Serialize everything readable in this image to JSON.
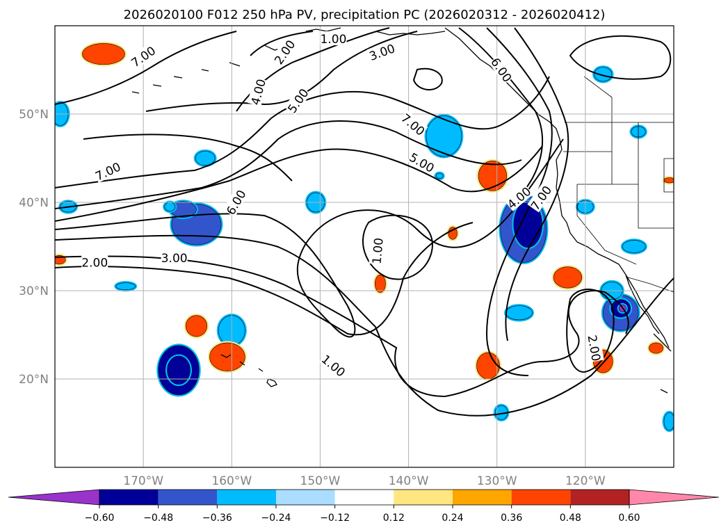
{
  "chart_data": {
    "type": "map-contour",
    "title": "2026020100 F012 250 hPa PV, precipitation PC (2026020312 - 2026020412)",
    "map_extent": {
      "lon_min": -180,
      "lon_max": -110,
      "lat_min": 10,
      "lat_max": 60
    },
    "lon_ticks": [
      {
        "lon": -170,
        "label": "170°W"
      },
      {
        "lon": -160,
        "label": "160°W"
      },
      {
        "lon": -150,
        "label": "150°W"
      },
      {
        "lon": -140,
        "label": "140°W"
      },
      {
        "lon": -130,
        "label": "130°W"
      },
      {
        "lon": -120,
        "label": "120°W"
      }
    ],
    "lat_ticks": [
      {
        "lat": 20,
        "label": "20°N"
      },
      {
        "lat": 30,
        "label": "30°N"
      },
      {
        "lat": 40,
        "label": "40°N"
      },
      {
        "lat": 50,
        "label": "50°N"
      }
    ],
    "pv_contour_labels": [
      {
        "text": "7.00",
        "lon": -170.0,
        "lat": 56.5,
        "rot": -35
      },
      {
        "text": "2.00",
        "lon": -154.0,
        "lat": 57.0,
        "rot": -55
      },
      {
        "text": "1.00",
        "lon": -148.5,
        "lat": 58.5,
        "rot": 0
      },
      {
        "text": "3.00",
        "lon": -143.0,
        "lat": 57.0,
        "rot": -20
      },
      {
        "text": "6.00",
        "lon": -129.5,
        "lat": 55.0,
        "rot": 55
      },
      {
        "text": "4.00",
        "lon": -157.0,
        "lat": 52.5,
        "rot": -75
      },
      {
        "text": "5.00",
        "lon": -152.5,
        "lat": 51.5,
        "rot": -55
      },
      {
        "text": "7.00",
        "lon": -174.0,
        "lat": 43.5,
        "rot": -25
      },
      {
        "text": "7.00",
        "lon": -139.5,
        "lat": 48.8,
        "rot": 40
      },
      {
        "text": "5.00",
        "lon": -138.5,
        "lat": 44.5,
        "rot": 30
      },
      {
        "text": "6.00",
        "lon": -159.5,
        "lat": 40.0,
        "rot": -60
      },
      {
        "text": "4.00",
        "lon": -127.5,
        "lat": 40.5,
        "rot": -40
      },
      {
        "text": "7.00",
        "lon": -125.0,
        "lat": 40.5,
        "rot": -55
      },
      {
        "text": "1.00",
        "lon": -143.5,
        "lat": 34.5,
        "rot": -85
      },
      {
        "text": "2.00",
        "lon": -175.5,
        "lat": 33.2,
        "rot": 0
      },
      {
        "text": "3.00",
        "lon": -166.5,
        "lat": 33.7,
        "rot": 0
      },
      {
        "text": "1.00",
        "lon": -148.5,
        "lat": 21.5,
        "rot": 40
      },
      {
        "text": "2.00",
        "lon": -119.0,
        "lat": 23.5,
        "rot": 80
      }
    ],
    "precip_pc_blobs": [
      {
        "lon": -174.5,
        "lat": 56.8,
        "rlon": 2.4,
        "rlat": 1.2,
        "value": 0.4
      },
      {
        "lon": -179.4,
        "lat": 50.0,
        "rlon": 0.9,
        "rlat": 1.3,
        "value": -0.35
      },
      {
        "lon": -178.5,
        "lat": 39.5,
        "rlon": 0.9,
        "rlat": 0.6,
        "value": -0.3
      },
      {
        "lon": -179.5,
        "lat": 33.5,
        "rlon": 0.7,
        "rlat": 0.5,
        "value": 0.38
      },
      {
        "lon": -164.0,
        "lat": 37.5,
        "rlon": 2.8,
        "rlat": 2.3,
        "value": -0.38
      },
      {
        "lon": -165.5,
        "lat": 39.2,
        "rlon": 1.5,
        "rlat": 0.9,
        "value": -0.4
      },
      {
        "lon": -160.0,
        "lat": 25.5,
        "rlon": 1.5,
        "rlat": 1.7,
        "value": -0.36
      },
      {
        "lon": -163.0,
        "lat": 45.0,
        "rlon": 1.1,
        "rlat": 0.8,
        "value": -0.32
      },
      {
        "lon": -167.0,
        "lat": 39.5,
        "rlon": 0.6,
        "rlat": 0.5,
        "value": -0.3
      },
      {
        "lon": -172.0,
        "lat": 30.5,
        "rlon": 1.1,
        "rlat": 0.4,
        "value": -0.3
      },
      {
        "lon": -166.0,
        "lat": 21.0,
        "rlon": 2.3,
        "rlat": 2.8,
        "value": -0.5
      },
      {
        "lon": -166.0,
        "lat": 21.0,
        "rlon": 1.3,
        "rlat": 1.6,
        "value": -0.55
      },
      {
        "lon": -164.0,
        "lat": 26.0,
        "rlon": 1.2,
        "rlat": 1.2,
        "value": 0.4
      },
      {
        "lon": -160.5,
        "lat": 22.5,
        "rlon": 2.0,
        "rlat": 1.6,
        "value": 0.4
      },
      {
        "lon": -150.5,
        "lat": 40.0,
        "rlon": 1.0,
        "rlat": 1.1,
        "value": -0.33
      },
      {
        "lon": -136.0,
        "lat": 47.5,
        "rlon": 2.0,
        "rlat": 2.3,
        "value": -0.36
      },
      {
        "lon": -136.5,
        "lat": 43.0,
        "rlon": 0.4,
        "rlat": 0.3,
        "value": -0.3
      },
      {
        "lon": -130.5,
        "lat": 43.0,
        "rlon": 1.6,
        "rlat": 1.7,
        "value": 0.4
      },
      {
        "lon": -135.0,
        "lat": 36.5,
        "rlon": 0.5,
        "rlat": 0.7,
        "value": 0.38
      },
      {
        "lon": -143.2,
        "lat": 30.8,
        "rlon": 0.6,
        "rlat": 1.0,
        "value": 0.38
      },
      {
        "lon": -127.0,
        "lat": 37.0,
        "rlon": 2.6,
        "rlat": 3.8,
        "value": -0.45
      },
      {
        "lon": -126.5,
        "lat": 37.5,
        "rlon": 1.6,
        "rlat": 2.6,
        "value": -0.55
      },
      {
        "lon": -122.0,
        "lat": 31.5,
        "rlon": 1.6,
        "rlat": 1.2,
        "value": 0.4
      },
      {
        "lon": -127.5,
        "lat": 27.5,
        "rlon": 1.5,
        "rlat": 0.8,
        "value": -0.36
      },
      {
        "lon": -131.0,
        "lat": 21.5,
        "rlon": 1.3,
        "rlat": 1.5,
        "value": 0.4
      },
      {
        "lon": -118.0,
        "lat": 22.0,
        "rlon": 1.1,
        "rlat": 1.3,
        "value": 0.4
      },
      {
        "lon": -116.0,
        "lat": 27.5,
        "rlon": 2.0,
        "rlat": 2.0,
        "value": -0.38
      },
      {
        "lon": -116.0,
        "lat": 28.0,
        "rlon": 1.1,
        "rlat": 1.0,
        "value": -0.55
      },
      {
        "lon": -115.8,
        "lat": 28.0,
        "rlon": 0.4,
        "rlat": 0.4,
        "value": -0.65
      },
      {
        "lon": -117.0,
        "lat": 30.0,
        "rlon": 1.2,
        "rlat": 1.0,
        "value": -0.36
      },
      {
        "lon": -114.5,
        "lat": 35.0,
        "rlon": 1.3,
        "rlat": 0.7,
        "value": -0.33
      },
      {
        "lon": -118.0,
        "lat": 54.5,
        "rlon": 1.0,
        "rlat": 0.8,
        "value": -0.36
      },
      {
        "lon": -114.0,
        "lat": 48.0,
        "rlon": 0.8,
        "rlat": 0.6,
        "value": -0.3
      },
      {
        "lon": -120.0,
        "lat": 39.5,
        "rlon": 0.9,
        "rlat": 0.7,
        "value": -0.3
      },
      {
        "lon": -129.5,
        "lat": 16.2,
        "rlon": 0.7,
        "rlat": 0.8,
        "value": -0.33
      },
      {
        "lon": -110.5,
        "lat": 15.2,
        "rlon": 0.6,
        "rlat": 1.0,
        "value": -0.33
      },
      {
        "lon": -112.0,
        "lat": 23.5,
        "rlon": 0.8,
        "rlat": 0.6,
        "value": 0.4
      },
      {
        "lon": -110.5,
        "lat": 42.5,
        "rlon": 0.6,
        "rlat": 0.3,
        "value": 0.38
      }
    ],
    "colorbar": {
      "extend": "both",
      "tick_labels": [
        "−0.60",
        "−0.48",
        "−0.36",
        "−0.24",
        "−0.12",
        "0.12",
        "0.24",
        "0.36",
        "0.48",
        "0.60"
      ],
      "colors": [
        "#9933cc",
        "#000099",
        "#3355cc",
        "#00bbff",
        "#aaddff",
        "#ffffff",
        "#ffe680",
        "#ffa500",
        "#ff4400",
        "#b22222",
        "#ff88aa"
      ],
      "bounds": [
        -0.6,
        -0.48,
        -0.36,
        -0.24,
        -0.12,
        0.12,
        0.24,
        0.36,
        0.48,
        0.6
      ]
    },
    "contour_color": "#000000",
    "gridlines": true
  }
}
